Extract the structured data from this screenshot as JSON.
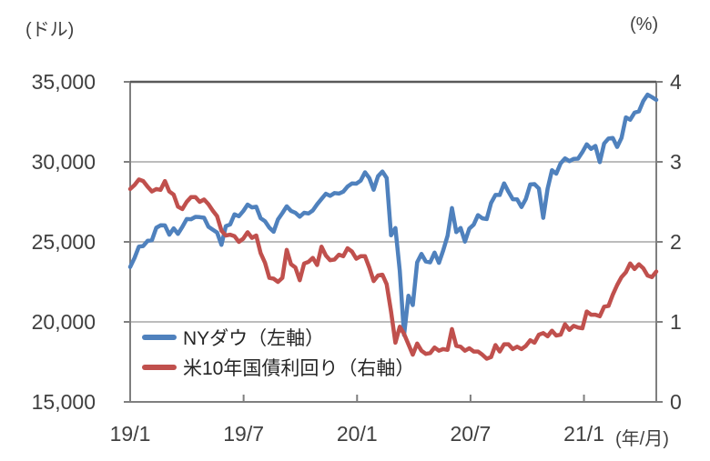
{
  "chart_data": {
    "type": "line",
    "grid": "horizontal",
    "legend_position": "bottom-left-inside",
    "x": {
      "interval": "weekly",
      "start": "19/1",
      "end": "21/4",
      "axis_note": "(年/月)",
      "tick_labels": [
        "19/1",
        "19/7",
        "20/1",
        "20/7",
        "21/1"
      ],
      "tick_month_offsets": [
        0,
        6,
        12,
        18,
        24
      ]
    },
    "y_left": {
      "unit": "(ドル)",
      "range": [
        15000,
        35000
      ],
      "tick_step": 5000,
      "tick_labels": [
        "35,000",
        "30,000",
        "25,000",
        "20,000",
        "15,000"
      ]
    },
    "y_right": {
      "unit": "(%)",
      "range": [
        0,
        4
      ],
      "tick_step": 1,
      "tick_labels": [
        "4",
        "3",
        "2",
        "1",
        "0"
      ]
    },
    "series": [
      {
        "name": "NYダウ（左軸）",
        "axis": "left",
        "color": "#4f81bd",
        "values": [
          23433,
          23996,
          24706,
          24737,
          25064,
          25106,
          25883,
          26032,
          26026,
          25450,
          25849,
          25502,
          25929,
          26425,
          26412,
          26560,
          26543,
          26505,
          25942,
          25764,
          25586,
          24815,
          25984,
          26090,
          26719,
          26600,
          26922,
          27332,
          27154,
          27192,
          26485,
          26287,
          25886,
          25629,
          26403,
          26797,
          27219,
          26935,
          26820,
          26574,
          26817,
          26770,
          26958,
          27347,
          27681,
          28005,
          27876,
          28051,
          28015,
          28135,
          28455,
          28645,
          28635,
          28824,
          29348,
          28990,
          28256,
          29103,
          29398,
          28992,
          25409,
          25865,
          23186,
          19174,
          21637,
          21053,
          23719,
          24242,
          23775,
          23724,
          24331,
          23685,
          24465,
          25383,
          27111,
          25606,
          25871,
          25016,
          25827,
          26075,
          26672,
          26470,
          26428,
          27433,
          27931,
          27930,
          28654,
          28133,
          27666,
          27657,
          27174,
          27683,
          28587,
          28606,
          28336,
          26502,
          28323,
          29480,
          29263,
          29910,
          30218,
          30046,
          30179,
          30200,
          30606,
          31098,
          30814,
          30997,
          29983,
          31148,
          31458,
          31494,
          30932,
          31496,
          32779,
          32628,
          33073,
          33153,
          33801,
          34201,
          34043,
          33875
        ]
      },
      {
        "name": "米10年国債利回り（右軸）",
        "axis": "right",
        "color": "#c0504d",
        "values": [
          2.66,
          2.71,
          2.78,
          2.76,
          2.69,
          2.63,
          2.66,
          2.65,
          2.76,
          2.63,
          2.59,
          2.44,
          2.41,
          2.5,
          2.56,
          2.56,
          2.5,
          2.53,
          2.47,
          2.39,
          2.32,
          2.14,
          2.08,
          2.09,
          2.07,
          2.0,
          2.04,
          2.12,
          2.05,
          2.08,
          1.86,
          1.74,
          1.55,
          1.54,
          1.5,
          1.55,
          1.9,
          1.72,
          1.68,
          1.52,
          1.73,
          1.75,
          1.8,
          1.71,
          1.94,
          1.83,
          1.77,
          1.78,
          1.84,
          1.82,
          1.92,
          1.88,
          1.79,
          1.82,
          1.82,
          1.68,
          1.51,
          1.58,
          1.59,
          1.47,
          1.13,
          0.74,
          0.94,
          0.85,
          0.72,
          0.59,
          0.73,
          0.64,
          0.6,
          0.61,
          0.68,
          0.64,
          0.66,
          0.65,
          0.91,
          0.7,
          0.69,
          0.64,
          0.67,
          0.63,
          0.63,
          0.59,
          0.54,
          0.56,
          0.71,
          0.63,
          0.72,
          0.72,
          0.66,
          0.69,
          0.66,
          0.7,
          0.77,
          0.74,
          0.84,
          0.86,
          0.82,
          0.89,
          0.83,
          0.84,
          0.97,
          0.9,
          0.95,
          0.93,
          0.92,
          1.13,
          1.09,
          1.09,
          1.07,
          1.19,
          1.2,
          1.34,
          1.46,
          1.56,
          1.62,
          1.73,
          1.66,
          1.72,
          1.67,
          1.58,
          1.56,
          1.63
        ]
      }
    ]
  }
}
